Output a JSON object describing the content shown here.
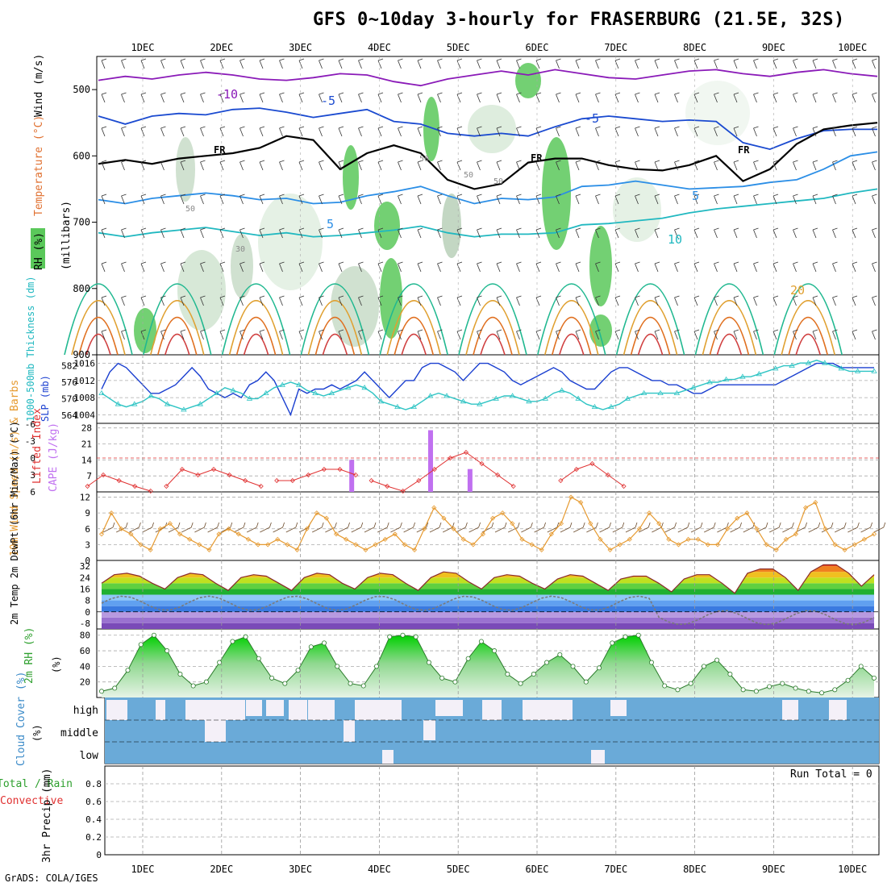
{
  "title": "GFS 0~10day 3-hourly for FRASERBURG (21.5E, 32S)",
  "credit": "GrADS: COLA/IGES",
  "dates": [
    "1DEC",
    "2DEC",
    "3DEC",
    "4DEC",
    "5DEC",
    "6DEC",
    "7DEC",
    "8DEC",
    "9DEC",
    "10DEC"
  ],
  "colors": {
    "slp": "#1a3fd0",
    "thickness": "#2ec4c4",
    "lifted_index": "#e03030",
    "cape": "#c070f0",
    "wind_speed": "#e69a30",
    "barbs": "#6b4a2a",
    "dewpoint": "#7a7a7a",
    "rh": "#2ea02e",
    "cloud": "#6aaad8",
    "cloud_gap": "#f4f0f8"
  },
  "chart_data": [
    {
      "type": "contour",
      "panel": "upper-air",
      "ylabel_parts": [
        "RH (%)",
        "Temperature (°C)",
        "Wind (m/s)",
        "(millibars)"
      ],
      "y_ticks": [
        "500",
        "600",
        "700",
        "800",
        "900"
      ],
      "ylim": [
        450,
        900
      ],
      "isotherm_labels": [
        "-10",
        "-5",
        "-5",
        "FR",
        "FR",
        "FR",
        "5",
        "5",
        "10",
        "20"
      ],
      "rh_labels": [
        "50",
        "50",
        "30",
        "50",
        "50"
      ],
      "isotherms": [
        {
          "label": "-10",
          "color": "#8a1ab8",
          "p": [
            486,
            480,
            484,
            478,
            474,
            478,
            484,
            486,
            482,
            476,
            478,
            488,
            494,
            484,
            478,
            472,
            478,
            470,
            476,
            482,
            484,
            478,
            472,
            470,
            476,
            480,
            474,
            470,
            476,
            480
          ]
        },
        {
          "label": "-5",
          "color": "#1a4ad0",
          "p": [
            540,
            552,
            540,
            536,
            538,
            530,
            528,
            534,
            542,
            536,
            530,
            548,
            552,
            566,
            570,
            566,
            570,
            556,
            544,
            540,
            544,
            548,
            546,
            548,
            580,
            590,
            574,
            562,
            560,
            560
          ]
        },
        {
          "label": "FR",
          "color": "#000000",
          "p": [
            612,
            606,
            612,
            604,
            600,
            596,
            588,
            570,
            576,
            620,
            596,
            584,
            596,
            636,
            650,
            642,
            610,
            604,
            604,
            614,
            620,
            622,
            614,
            600,
            638,
            620,
            582,
            560,
            554,
            550
          ]
        },
        {
          "label": "5",
          "color": "#2b8ee6",
          "p": [
            666,
            672,
            664,
            660,
            656,
            660,
            666,
            664,
            672,
            670,
            660,
            654,
            646,
            660,
            672,
            664,
            666,
            662,
            646,
            644,
            638,
            644,
            650,
            648,
            646,
            640,
            636,
            620,
            600,
            594
          ]
        },
        {
          "label": "10",
          "color": "#20b8c0",
          "p": [
            716,
            722,
            716,
            712,
            708,
            714,
            720,
            716,
            722,
            720,
            716,
            712,
            706,
            716,
            722,
            718,
            718,
            716,
            704,
            702,
            698,
            694,
            686,
            680,
            676,
            672,
            668,
            664,
            656,
            650
          ]
        }
      ]
    },
    {
      "type": "line",
      "panel": "slp-thickness",
      "ylabel_left": "1000-500mb Thickness (dm)",
      "ylabel_right": "SLP (mb)",
      "left_ticks": [
        "564",
        "570",
        "576",
        "582"
      ],
      "right_ticks": [
        "1004",
        "1008",
        "1012",
        "1016"
      ],
      "ylim_slp": [
        1002,
        1018
      ],
      "series": [
        {
          "axis": "slp",
          "values": [
            1010,
            1014,
            1016,
            1015,
            1013,
            1011,
            1009,
            1009,
            1010,
            1011,
            1013,
            1015,
            1013,
            1010,
            1009,
            1008,
            1009,
            1008,
            1011,
            1012,
            1014,
            1012,
            1008,
            1004,
            1010,
            1009,
            1010,
            1010,
            1011,
            1010,
            1011,
            1012,
            1014,
            1012,
            1010,
            1008,
            1010,
            1012,
            1012,
            1015,
            1016,
            1016,
            1015,
            1014,
            1012,
            1014,
            1016,
            1016,
            1015,
            1014,
            1012,
            1011,
            1012,
            1013,
            1014,
            1015,
            1014,
            1012,
            1011,
            1010,
            1010,
            1012,
            1014,
            1015,
            1015,
            1014,
            1013,
            1012,
            1012,
            1011,
            1011,
            1010,
            1009,
            1009,
            1010,
            1011,
            1011,
            1011,
            1011,
            1011,
            1011,
            1011,
            1011,
            1012,
            1013,
            1014,
            1015,
            1016,
            1016,
            1016,
            1015,
            1015,
            1015,
            1015,
            1015
          ]
        },
        {
          "axis": "thickness",
          "values": [
            572,
            570,
            568,
            567,
            568,
            569,
            571,
            570,
            568,
            567,
            566,
            567,
            568,
            570,
            572,
            574,
            573,
            572,
            570,
            570,
            572,
            574,
            575,
            576,
            575,
            573,
            572,
            571,
            572,
            573,
            574,
            575,
            574,
            572,
            569,
            568,
            567,
            566,
            567,
            569,
            571,
            572,
            571,
            570,
            569,
            568,
            568,
            569,
            570,
            571,
            571,
            570,
            569,
            569,
            570,
            572,
            573,
            572,
            570,
            568,
            567,
            566,
            567,
            568,
            570,
            571,
            572,
            572,
            572,
            572,
            572,
            573,
            574,
            575,
            576,
            576,
            577,
            577,
            578,
            578,
            579,
            580,
            581,
            582,
            582,
            583,
            583,
            584,
            583,
            582,
            581,
            580,
            580,
            580,
            580
          ]
        }
      ]
    },
    {
      "type": "bar+line",
      "panel": "cape-li",
      "ylabel_left": "Lifted Index",
      "ylabel_right": "CAPE (J/kg)",
      "left_ticks": [
        "-6",
        "-3",
        "0",
        "3",
        "6"
      ],
      "right_ticks": [
        "7",
        "14",
        "21",
        "28"
      ],
      "cape_bars": [
        {
          "time_days": 3.65,
          "value": 14
        },
        {
          "time_days": 4.65,
          "value": 27
        },
        {
          "time_days": 5.15,
          "value": 10
        }
      ],
      "lifted_index": [
        {
          "t": [
            0.3,
            0.5,
            0.7,
            0.9,
            1.1
          ],
          "v": [
            5,
            3,
            4,
            5,
            6
          ]
        },
        {
          "t": [
            1.3,
            1.5,
            1.7,
            1.9,
            2.1,
            2.3,
            2.5
          ],
          "v": [
            5,
            2,
            3,
            2,
            3,
            4,
            5
          ]
        },
        {
          "t": [
            2.7,
            2.9,
            3.1,
            3.3,
            3.5,
            3.7
          ],
          "v": [
            4,
            4,
            3,
            2,
            2,
            3
          ]
        },
        {
          "t": [
            3.9,
            4.1,
            4.3,
            4.5,
            4.7,
            4.9,
            5.1,
            5.3,
            5.5,
            5.7
          ],
          "v": [
            4,
            5,
            6,
            4,
            2,
            0,
            -1,
            1,
            3,
            5
          ]
        },
        {
          "t": [
            6.3,
            6.5,
            6.7,
            6.9,
            7.1
          ],
          "v": [
            4,
            2,
            1,
            3,
            5
          ]
        }
      ]
    },
    {
      "type": "line",
      "panel": "wind",
      "ylabel": "10m Wind Speed (m/s) & Barbs",
      "y_ticks": [
        "0",
        "3",
        "6",
        "9",
        "12"
      ],
      "ylim": [
        0,
        13
      ],
      "values": [
        5,
        9,
        6,
        5,
        3,
        2,
        6,
        7,
        5,
        4,
        3,
        2,
        5,
        6,
        5,
        4,
        3,
        3,
        4,
        3,
        2,
        6,
        9,
        8,
        5,
        4,
        3,
        2,
        3,
        4,
        5,
        3,
        2,
        6,
        10,
        8,
        6,
        4,
        3,
        5,
        8,
        9,
        7,
        4,
        3,
        2,
        5,
        7,
        12,
        11,
        7,
        4,
        2,
        3,
        4,
        6,
        9,
        7,
        4,
        3,
        4,
        4,
        3,
        3,
        6,
        8,
        9,
        6,
        3,
        2,
        4,
        5,
        10,
        11,
        6,
        3,
        2,
        3,
        4,
        5
      ]
    },
    {
      "type": "area",
      "panel": "temperature",
      "ylabel": "2m Temp 2m DewPt (6hr Min/Max) (°C)",
      "y_ticks": [
        "32",
        "24",
        "16",
        "8",
        "0",
        "-8"
      ],
      "ylim": [
        -12,
        36
      ],
      "temperature": [
        20,
        26,
        27,
        25,
        20,
        16,
        24,
        27,
        26,
        20,
        15,
        24,
        26,
        25,
        20,
        15,
        24,
        27,
        26,
        20,
        16,
        24,
        27,
        26,
        20,
        15,
        24,
        28,
        27,
        21,
        16,
        24,
        26,
        25,
        20,
        16,
        23,
        26,
        25,
        20,
        15,
        23,
        25,
        25,
        20,
        14,
        23,
        26,
        26,
        20,
        13,
        27,
        30,
        30,
        24,
        15,
        28,
        33,
        33,
        27,
        18,
        26
      ]
    },
    {
      "type": "area",
      "panel": "rh",
      "ylabel": "2m RH (%)",
      "y_ticks": [
        "20",
        "40",
        "60",
        "80"
      ],
      "ylim": [
        0,
        88
      ],
      "values": [
        8,
        12,
        35,
        68,
        80,
        60,
        30,
        15,
        20,
        45,
        72,
        78,
        50,
        25,
        18,
        35,
        65,
        70,
        40,
        18,
        15,
        40,
        78,
        80,
        78,
        45,
        25,
        20,
        50,
        72,
        60,
        30,
        18,
        30,
        45,
        55,
        40,
        20,
        38,
        70,
        78,
        80,
        45,
        15,
        10,
        18,
        40,
        48,
        30,
        10,
        8,
        14,
        18,
        12,
        8,
        6,
        10,
        22,
        40,
        25
      ]
    },
    {
      "type": "heatmap",
      "panel": "cloud-cover",
      "ylabel": "Cloud Cover (%)",
      "level_labels": [
        "high",
        "middle",
        "low"
      ]
    },
    {
      "type": "bar",
      "panel": "precip",
      "ylabel": "3hr Precip (mm)",
      "ylabel_prefix": "Total / Rain",
      "ylabel_convective": "Convective",
      "y_ticks": [
        "0",
        "0.2",
        "0.4",
        "0.6",
        "0.8"
      ],
      "ylim": [
        0,
        1
      ],
      "run_total": "Run Total = 0",
      "values": []
    }
  ]
}
